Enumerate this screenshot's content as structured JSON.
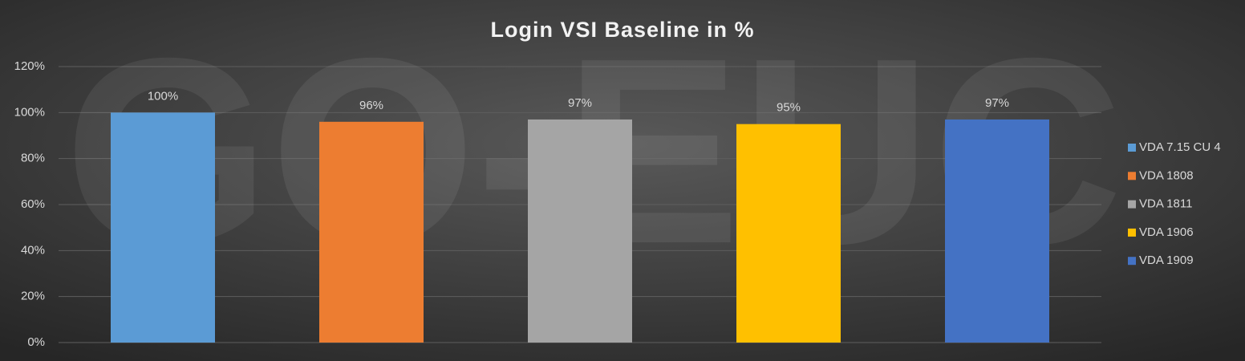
{
  "chart_data": {
    "type": "bar",
    "title": "Login VSI Baseline in %",
    "watermark": "GO-EUC",
    "series": [
      {
        "name": "VDA 7.15 CU 4",
        "color": "#5b9bd5",
        "values": [
          100
        ],
        "value_labels": [
          "100%"
        ]
      },
      {
        "name": "VDA 1808",
        "color": "#ed7d31",
        "values": [
          96
        ],
        "value_labels": [
          "96%"
        ]
      },
      {
        "name": "VDA 1811",
        "color": "#a5a5a5",
        "values": [
          97
        ],
        "value_labels": [
          "97%"
        ]
      },
      {
        "name": "VDA 1906",
        "color": "#ffc000",
        "values": [
          95
        ],
        "value_labels": [
          "95%"
        ]
      },
      {
        "name": "VDA 1909",
        "color": "#4472c4",
        "values": [
          97
        ],
        "value_labels": [
          "97%"
        ]
      }
    ],
    "ylim": [
      0,
      120
    ],
    "yticks": [
      {
        "value": 0,
        "label": "0%"
      },
      {
        "value": 20,
        "label": "20%"
      },
      {
        "value": 40,
        "label": "40%"
      },
      {
        "value": 60,
        "label": "60%"
      },
      {
        "value": 80,
        "label": "80%"
      },
      {
        "value": 100,
        "label": "100%"
      },
      {
        "value": 120,
        "label": "120%"
      }
    ],
    "grid": true,
    "legend": "right"
  }
}
